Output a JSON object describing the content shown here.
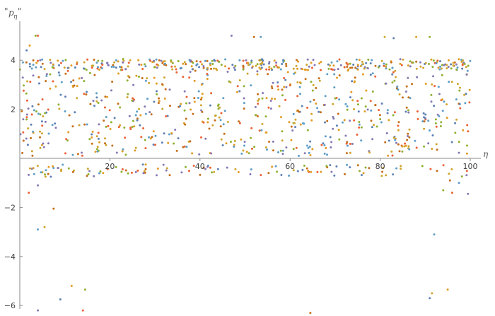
{
  "chart_data": {
    "type": "scatter",
    "title": "",
    "xlabel": "η",
    "ylabel": {
      "quote_open": "\"",
      "base": "p",
      "subscript": "η",
      "quote_close": "\""
    },
    "xlim": [
      0,
      100
    ],
    "ylim": [
      -6.3,
      5.5
    ],
    "x_ticks": [
      20,
      40,
      60,
      80,
      100
    ],
    "y_ticks": [
      -6,
      -4,
      -2,
      2,
      4
    ],
    "grid": false,
    "legend": "none",
    "marker": "dot",
    "series_colors": [
      "#5E81B5",
      "#E19C24",
      "#8FB032",
      "#EB6235",
      "#8778B3",
      "#C56E1A",
      "#5D9EC7",
      "#D0A52F"
    ],
    "band": {
      "x_range": [
        0,
        100
      ],
      "y_range": [
        0.1,
        4.0
      ],
      "count": 1000,
      "seed": 7
    },
    "negative_band": {
      "y_range": [
        -0.75,
        -0.25
      ],
      "count": 120,
      "seed": 11
    },
    "outliers": [
      {
        "x": 1.5,
        "y": 4.4
      },
      {
        "x": 2.2,
        "y": 4.6
      },
      {
        "x": 3.5,
        "y": 5.0
      },
      {
        "x": 4.0,
        "y": 5.0
      },
      {
        "x": 47.0,
        "y": 5.0
      },
      {
        "x": 52.0,
        "y": 4.95
      },
      {
        "x": 53.5,
        "y": 4.95
      },
      {
        "x": 81.0,
        "y": 4.95
      },
      {
        "x": 83.0,
        "y": 4.9
      },
      {
        "x": 88.0,
        "y": 4.95
      },
      {
        "x": 91.0,
        "y": 4.95
      },
      {
        "x": 2.0,
        "y": -1.4
      },
      {
        "x": 4.0,
        "y": -1.1
      },
      {
        "x": 7.5,
        "y": -2.05
      },
      {
        "x": 4.0,
        "y": -2.9
      },
      {
        "x": 5.5,
        "y": -2.8
      },
      {
        "x": 9.0,
        "y": -5.75
      },
      {
        "x": 11.5,
        "y": -5.2
      },
      {
        "x": 14.5,
        "y": -5.35
      },
      {
        "x": 14.0,
        "y": -6.2
      },
      {
        "x": 4.0,
        "y": -6.2
      },
      {
        "x": 64.5,
        "y": -6.3
      },
      {
        "x": 92.0,
        "y": -3.1
      },
      {
        "x": 91.5,
        "y": -5.5
      },
      {
        "x": 91.0,
        "y": -5.7
      },
      {
        "x": 95.0,
        "y": -5.35
      },
      {
        "x": 94.0,
        "y": -1.3
      },
      {
        "x": 96.0,
        "y": -1.4
      },
      {
        "x": 99.5,
        "y": -1.45
      },
      {
        "x": 95.5,
        "y": -0.9
      },
      {
        "x": 97.5,
        "y": -1.0
      }
    ]
  }
}
